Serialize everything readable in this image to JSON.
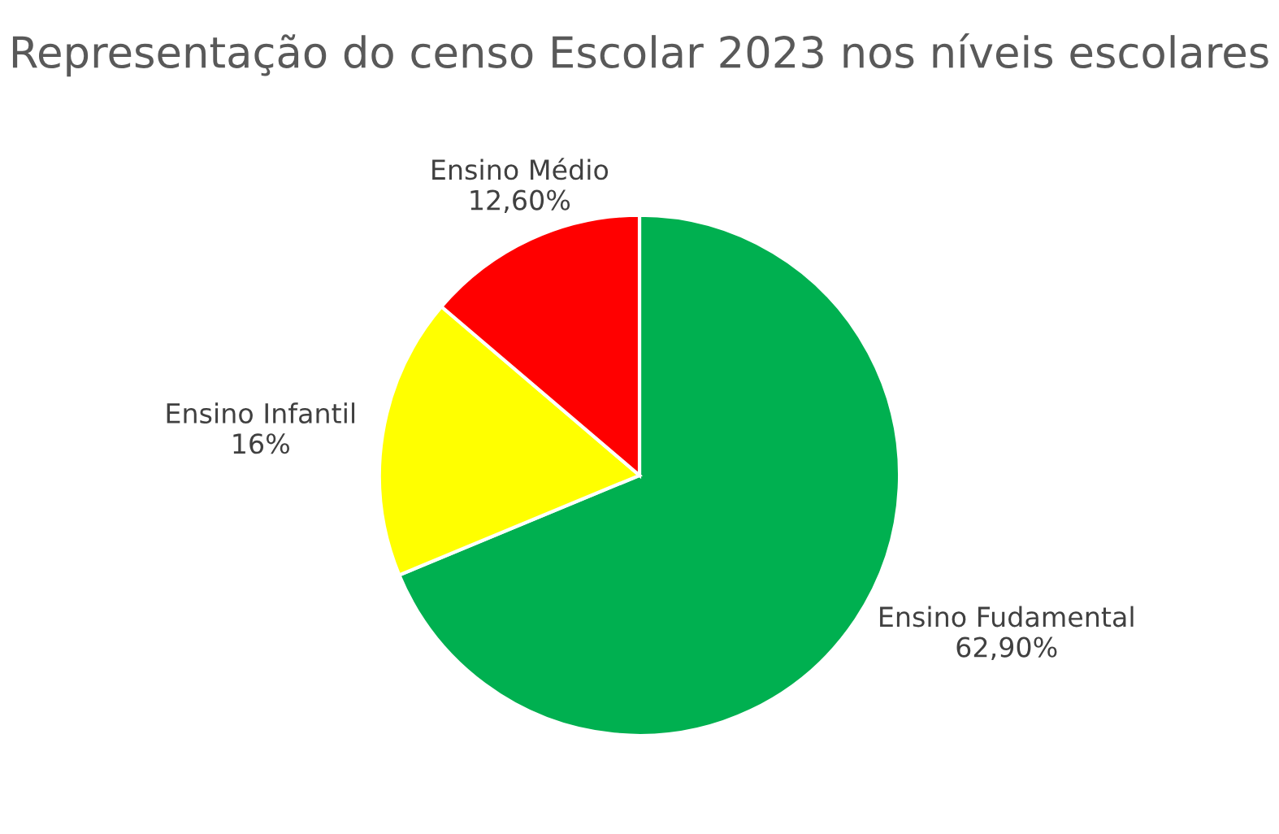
{
  "chart_data": {
    "type": "pie",
    "title": "Representação do censo Escolar 2023 nos níveis escolares",
    "categories": [
      "Ensino Fudamental",
      "Ensino Infantil",
      "Ensino Médio"
    ],
    "values": [
      62.9,
      16,
      12.6
    ],
    "value_labels": [
      "62,90%",
      "16%",
      "12,60%"
    ],
    "colors": [
      "#00b050",
      "#ffff00",
      "#ff0000"
    ]
  }
}
